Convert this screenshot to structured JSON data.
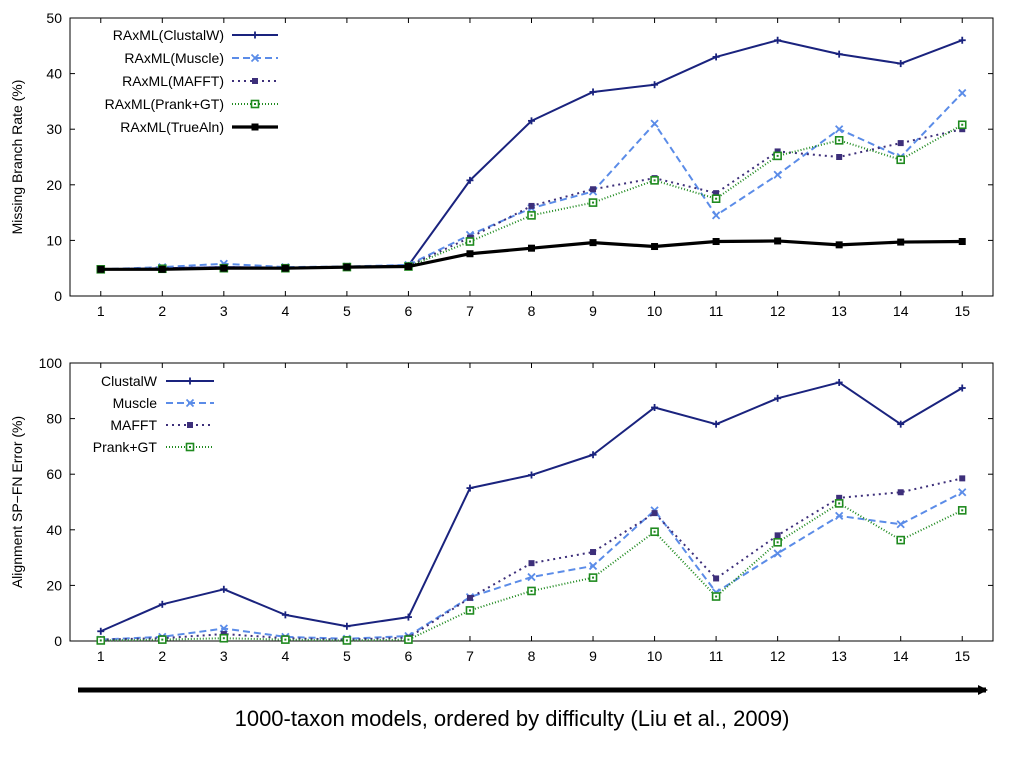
{
  "caption": "1000-taxon models, ordered by difficulty (Liu et al., 2009)",
  "chart_data": [
    {
      "type": "line",
      "title": "",
      "xlabel": "",
      "ylabel": "Missing Branch Rate (%)",
      "x": [
        1,
        2,
        3,
        4,
        5,
        6,
        7,
        8,
        9,
        10,
        11,
        12,
        13,
        14,
        15
      ],
      "xlim": [
        0.5,
        15.5
      ],
      "ylim": [
        0,
        50
      ],
      "yticks": [
        0,
        10,
        20,
        30,
        40,
        50
      ],
      "legend_position": "top-left",
      "grid": false,
      "series": [
        {
          "name": "RAxML(ClustalW)",
          "color": "#1a237e",
          "dash": "",
          "marker": "plus",
          "values": [
            4.8,
            5.0,
            5.2,
            5.1,
            5.2,
            5.5,
            20.8,
            31.5,
            36.7,
            38.0,
            43.0,
            46.0,
            43.5,
            41.8,
            46.0
          ]
        },
        {
          "name": "RAxML(Muscle)",
          "color": "#5b8ce8",
          "dash": "7,4",
          "marker": "x",
          "values": [
            4.8,
            5.2,
            5.8,
            5.2,
            5.3,
            5.6,
            11.0,
            15.8,
            18.8,
            31.0,
            14.5,
            21.8,
            30.0,
            25.0,
            36.5
          ]
        },
        {
          "name": "RAxML(MAFFT)",
          "color": "#3d2f7a",
          "dash": "2,4",
          "marker": "square-filled",
          "values": [
            4.8,
            5.0,
            5.2,
            5.0,
            5.2,
            5.4,
            10.5,
            16.2,
            19.2,
            21.2,
            18.5,
            26.0,
            25.0,
            27.5,
            30.0
          ]
        },
        {
          "name": "RAxML(Prank+GT)",
          "color": "#1f8a1f",
          "dash": "1,2",
          "marker": "square-open",
          "values": [
            4.8,
            4.9,
            5.0,
            5.0,
            5.2,
            5.3,
            9.8,
            14.5,
            16.8,
            20.8,
            17.5,
            25.2,
            28.0,
            24.5,
            30.8
          ]
        },
        {
          "name": "RAxML(TrueAln)",
          "color": "#000000",
          "dash": "",
          "marker": "square-filled-bold",
          "values": [
            4.8,
            4.8,
            5.0,
            5.0,
            5.2,
            5.3,
            7.6,
            8.6,
            9.6,
            8.9,
            9.8,
            9.9,
            9.2,
            9.7,
            9.8
          ]
        }
      ]
    },
    {
      "type": "line",
      "title": "",
      "xlabel": "",
      "ylabel": "Alignment SP−FN Error (%)",
      "x": [
        1,
        2,
        3,
        4,
        5,
        6,
        7,
        8,
        9,
        10,
        11,
        12,
        13,
        14,
        15
      ],
      "xlim": [
        0.5,
        15.5
      ],
      "ylim": [
        0,
        100
      ],
      "yticks": [
        0,
        20,
        40,
        60,
        80,
        100
      ],
      "legend_position": "top-left",
      "grid": false,
      "series": [
        {
          "name": "ClustalW",
          "color": "#1a237e",
          "dash": "",
          "marker": "plus",
          "values": [
            3.5,
            13.2,
            18.6,
            9.4,
            5.3,
            8.6,
            55.0,
            59.7,
            67.0,
            84.0,
            78.0,
            87.3,
            93.0,
            78.0,
            91.0
          ]
        },
        {
          "name": "Muscle",
          "color": "#5b8ce8",
          "dash": "7,4",
          "marker": "x",
          "values": [
            0.5,
            1.5,
            4.5,
            1.5,
            0.8,
            1.8,
            15.8,
            23.0,
            27.0,
            47.0,
            17.5,
            31.5,
            45.0,
            42.0,
            53.5
          ]
        },
        {
          "name": "MAFFT",
          "color": "#3d2f7a",
          "dash": "2,4",
          "marker": "square-filled",
          "values": [
            0.5,
            1.0,
            2.5,
            1.0,
            0.5,
            1.2,
            15.5,
            28.0,
            32.0,
            46.0,
            22.5,
            38.0,
            51.5,
            53.5,
            58.5
          ]
        },
        {
          "name": "Prank+GT",
          "color": "#1f8a1f",
          "dash": "1,2",
          "marker": "square-open",
          "values": [
            0.2,
            0.5,
            1.0,
            0.5,
            0.2,
            0.5,
            11.0,
            18.0,
            22.8,
            39.3,
            16.0,
            35.5,
            49.5,
            36.3,
            47.0
          ]
        }
      ]
    }
  ]
}
